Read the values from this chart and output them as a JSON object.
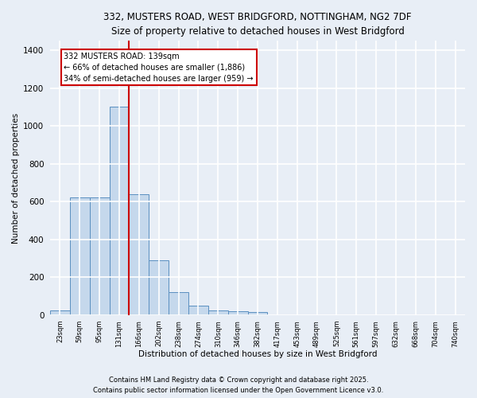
{
  "title_line1": "332, MUSTERS ROAD, WEST BRIDGFORD, NOTTINGHAM, NG2 7DF",
  "title_line2": "Size of property relative to detached houses in West Bridgford",
  "xlabel": "Distribution of detached houses by size in West Bridgford",
  "ylabel": "Number of detached properties",
  "bin_labels": [
    "23sqm",
    "59sqm",
    "95sqm",
    "131sqm",
    "166sqm",
    "202sqm",
    "238sqm",
    "274sqm",
    "310sqm",
    "346sqm",
    "382sqm",
    "417sqm",
    "453sqm",
    "489sqm",
    "525sqm",
    "561sqm",
    "597sqm",
    "632sqm",
    "668sqm",
    "704sqm",
    "740sqm"
  ],
  "bar_heights": [
    25,
    620,
    620,
    1100,
    640,
    290,
    120,
    50,
    25,
    20,
    15,
    0,
    0,
    0,
    0,
    0,
    0,
    0,
    0,
    0,
    0
  ],
  "bar_color": "#c5d8ec",
  "bar_edge_color": "#5a8fc0",
  "background_color": "#e8eef6",
  "grid_color": "#ffffff",
  "red_line_x": 3.5,
  "annotation_text": "332 MUSTERS ROAD: 139sqm\n← 66% of detached houses are smaller (1,886)\n34% of semi-detached houses are larger (959) →",
  "annotation_box_color": "#ffffff",
  "annotation_border_color": "#cc0000",
  "ylim": [
    0,
    1450
  ],
  "yticks": [
    0,
    200,
    400,
    600,
    800,
    1000,
    1200,
    1400
  ],
  "footnote1": "Contains HM Land Registry data © Crown copyright and database right 2025.",
  "footnote2": "Contains public sector information licensed under the Open Government Licence v3.0."
}
